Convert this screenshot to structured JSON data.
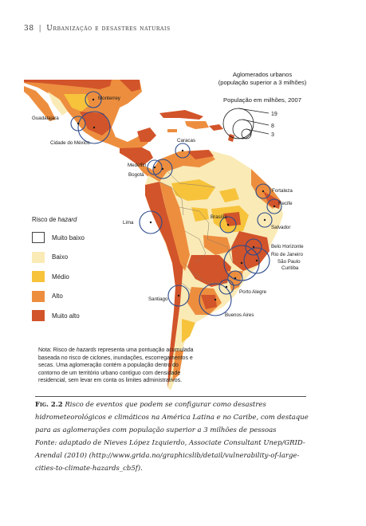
{
  "header": {
    "page_number": "38",
    "separator": "|",
    "title": "Urbanização e desastres naturais"
  },
  "map": {
    "agglomerations_title_line1": "Aglomerados urbanos",
    "agglomerations_title_line2": "(população superior a 3 milhões)",
    "population_title": "População em milhões, 2007",
    "size_legend": [
      "19",
      "8",
      "3"
    ],
    "cities": [
      "Monterrey",
      "Guadalajara",
      "Cidade do México",
      "Caracas",
      "Medellín",
      "Bogotá",
      "Fortaleza",
      "Recife",
      "Lima",
      "Brasília",
      "Salvador",
      "Belo Horizonte",
      "Rio de Janeiro",
      "São Paulo",
      "Curitiba",
      "Porto Alegre",
      "Santiago",
      "Buenos Aires"
    ],
    "colors": {
      "muito_alto": "#d2542a",
      "alto": "#ed8e3f",
      "medio": "#f6c33b",
      "baixo": "#faeab6",
      "muito_baixo": "#ffffff",
      "water": "#ffffff",
      "circle": "#2c4a8c"
    }
  },
  "legend": {
    "title_prefix": "Risco de ",
    "title_em": "hazard",
    "items": [
      {
        "label": "Muito baixo",
        "color": "#ffffff"
      },
      {
        "label": "Baixo",
        "color": "#faeab6"
      },
      {
        "label": "Médio",
        "color": "#f6c33b"
      },
      {
        "label": "Alto",
        "color": "#ed8e3f"
      },
      {
        "label": "Muito alto",
        "color": "#d2542a"
      }
    ]
  },
  "note": {
    "prefix": "Nota: Risco de ",
    "em": "hazards",
    "text": " representa uma pontuação acumulada baseada no risco de ciclones, inundações, escorregamentos e secas. Uma aglomeração contém a população dentro do contorno de um território urbano contíguo com densidade residencial, sem levar em conta os limites administrativos."
  },
  "caption": {
    "fig_label": "Fig. 2.2",
    "text": "Risco de eventos que podem se configurar como desastres hidrometeorológicos e climáticos na América Latina e no Caribe, com destaque para as aglomerações com população superior a 3 milhões de pessoas",
    "source": "Fonte: adaptado de Nieves López Izquierdo, Associate Consultant Unep/GRID-Arendal (2010) (http://www.grida.no/graphicslib/detail/vulnerability-of-large-cities-to-climate-hazards_cb5f)."
  }
}
